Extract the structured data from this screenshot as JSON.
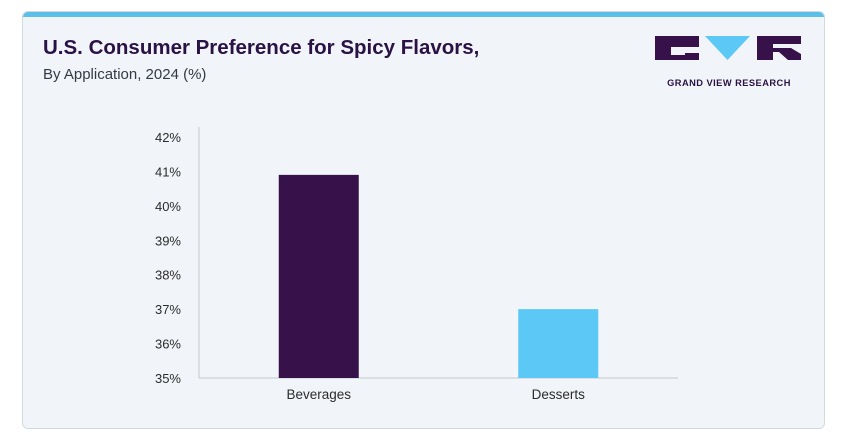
{
  "header": {
    "title": "U.S. Consumer Preference for Spicy Flavors,",
    "subtitle": "By Application, 2024 (%)"
  },
  "brand": {
    "name": "GRAND VIEW RESEARCH",
    "colors": {
      "primary": "#36114a",
      "accent": "#5bc8f5",
      "top_bar": "#5bc0e8"
    }
  },
  "chart_data": {
    "type": "bar",
    "categories": [
      "Beverages",
      "Desserts"
    ],
    "values": [
      40.9,
      37.0
    ],
    "colors": [
      "#36114a",
      "#5bc8f5"
    ],
    "title": "",
    "xlabel": "",
    "ylabel": "",
    "ylim": [
      35,
      42
    ],
    "yticks": [
      35,
      36,
      37,
      38,
      39,
      40,
      41,
      42
    ],
    "ytick_labels": [
      "35%",
      "36%",
      "37%",
      "38%",
      "39%",
      "40%",
      "41%",
      "42%"
    ],
    "grid": false,
    "legend": "none"
  }
}
